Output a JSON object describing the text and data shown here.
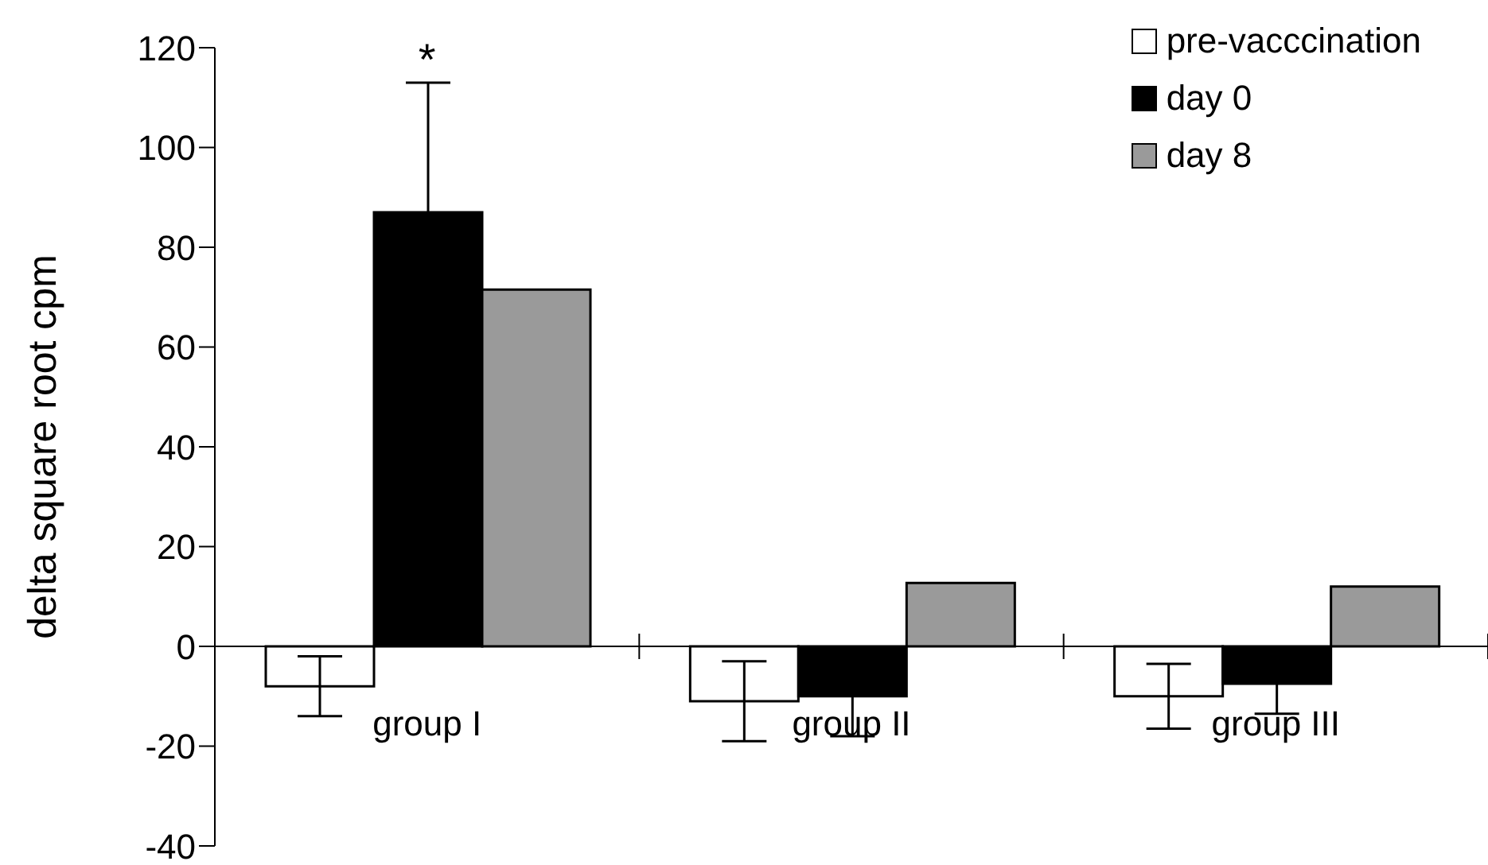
{
  "chart_data": {
    "type": "bar",
    "ylabel": "delta square root cpm",
    "categories": [
      "group I",
      "group II",
      "group III"
    ],
    "series": [
      {
        "name": "pre-vacccination",
        "color": "#ffffff",
        "values": [
          -8,
          -11,
          -10
        ],
        "errors": [
          6,
          8,
          6.5
        ]
      },
      {
        "name": "day 0",
        "color": "#000000",
        "values": [
          87,
          -10,
          -7.5
        ],
        "errors": [
          26,
          8,
          6
        ]
      },
      {
        "name": "day 8",
        "color": "#9a9a9a",
        "values": [
          71.5,
          12.7,
          12
        ],
        "errors": [
          null,
          null,
          null
        ]
      }
    ],
    "ylim": [
      -40,
      120
    ],
    "yticks": [
      -40,
      -20,
      0,
      20,
      40,
      60,
      80,
      100,
      120
    ],
    "grid": false,
    "legend": "top right",
    "annotations": [
      {
        "text": "*",
        "x": "group I",
        "y": 113
      }
    ]
  }
}
